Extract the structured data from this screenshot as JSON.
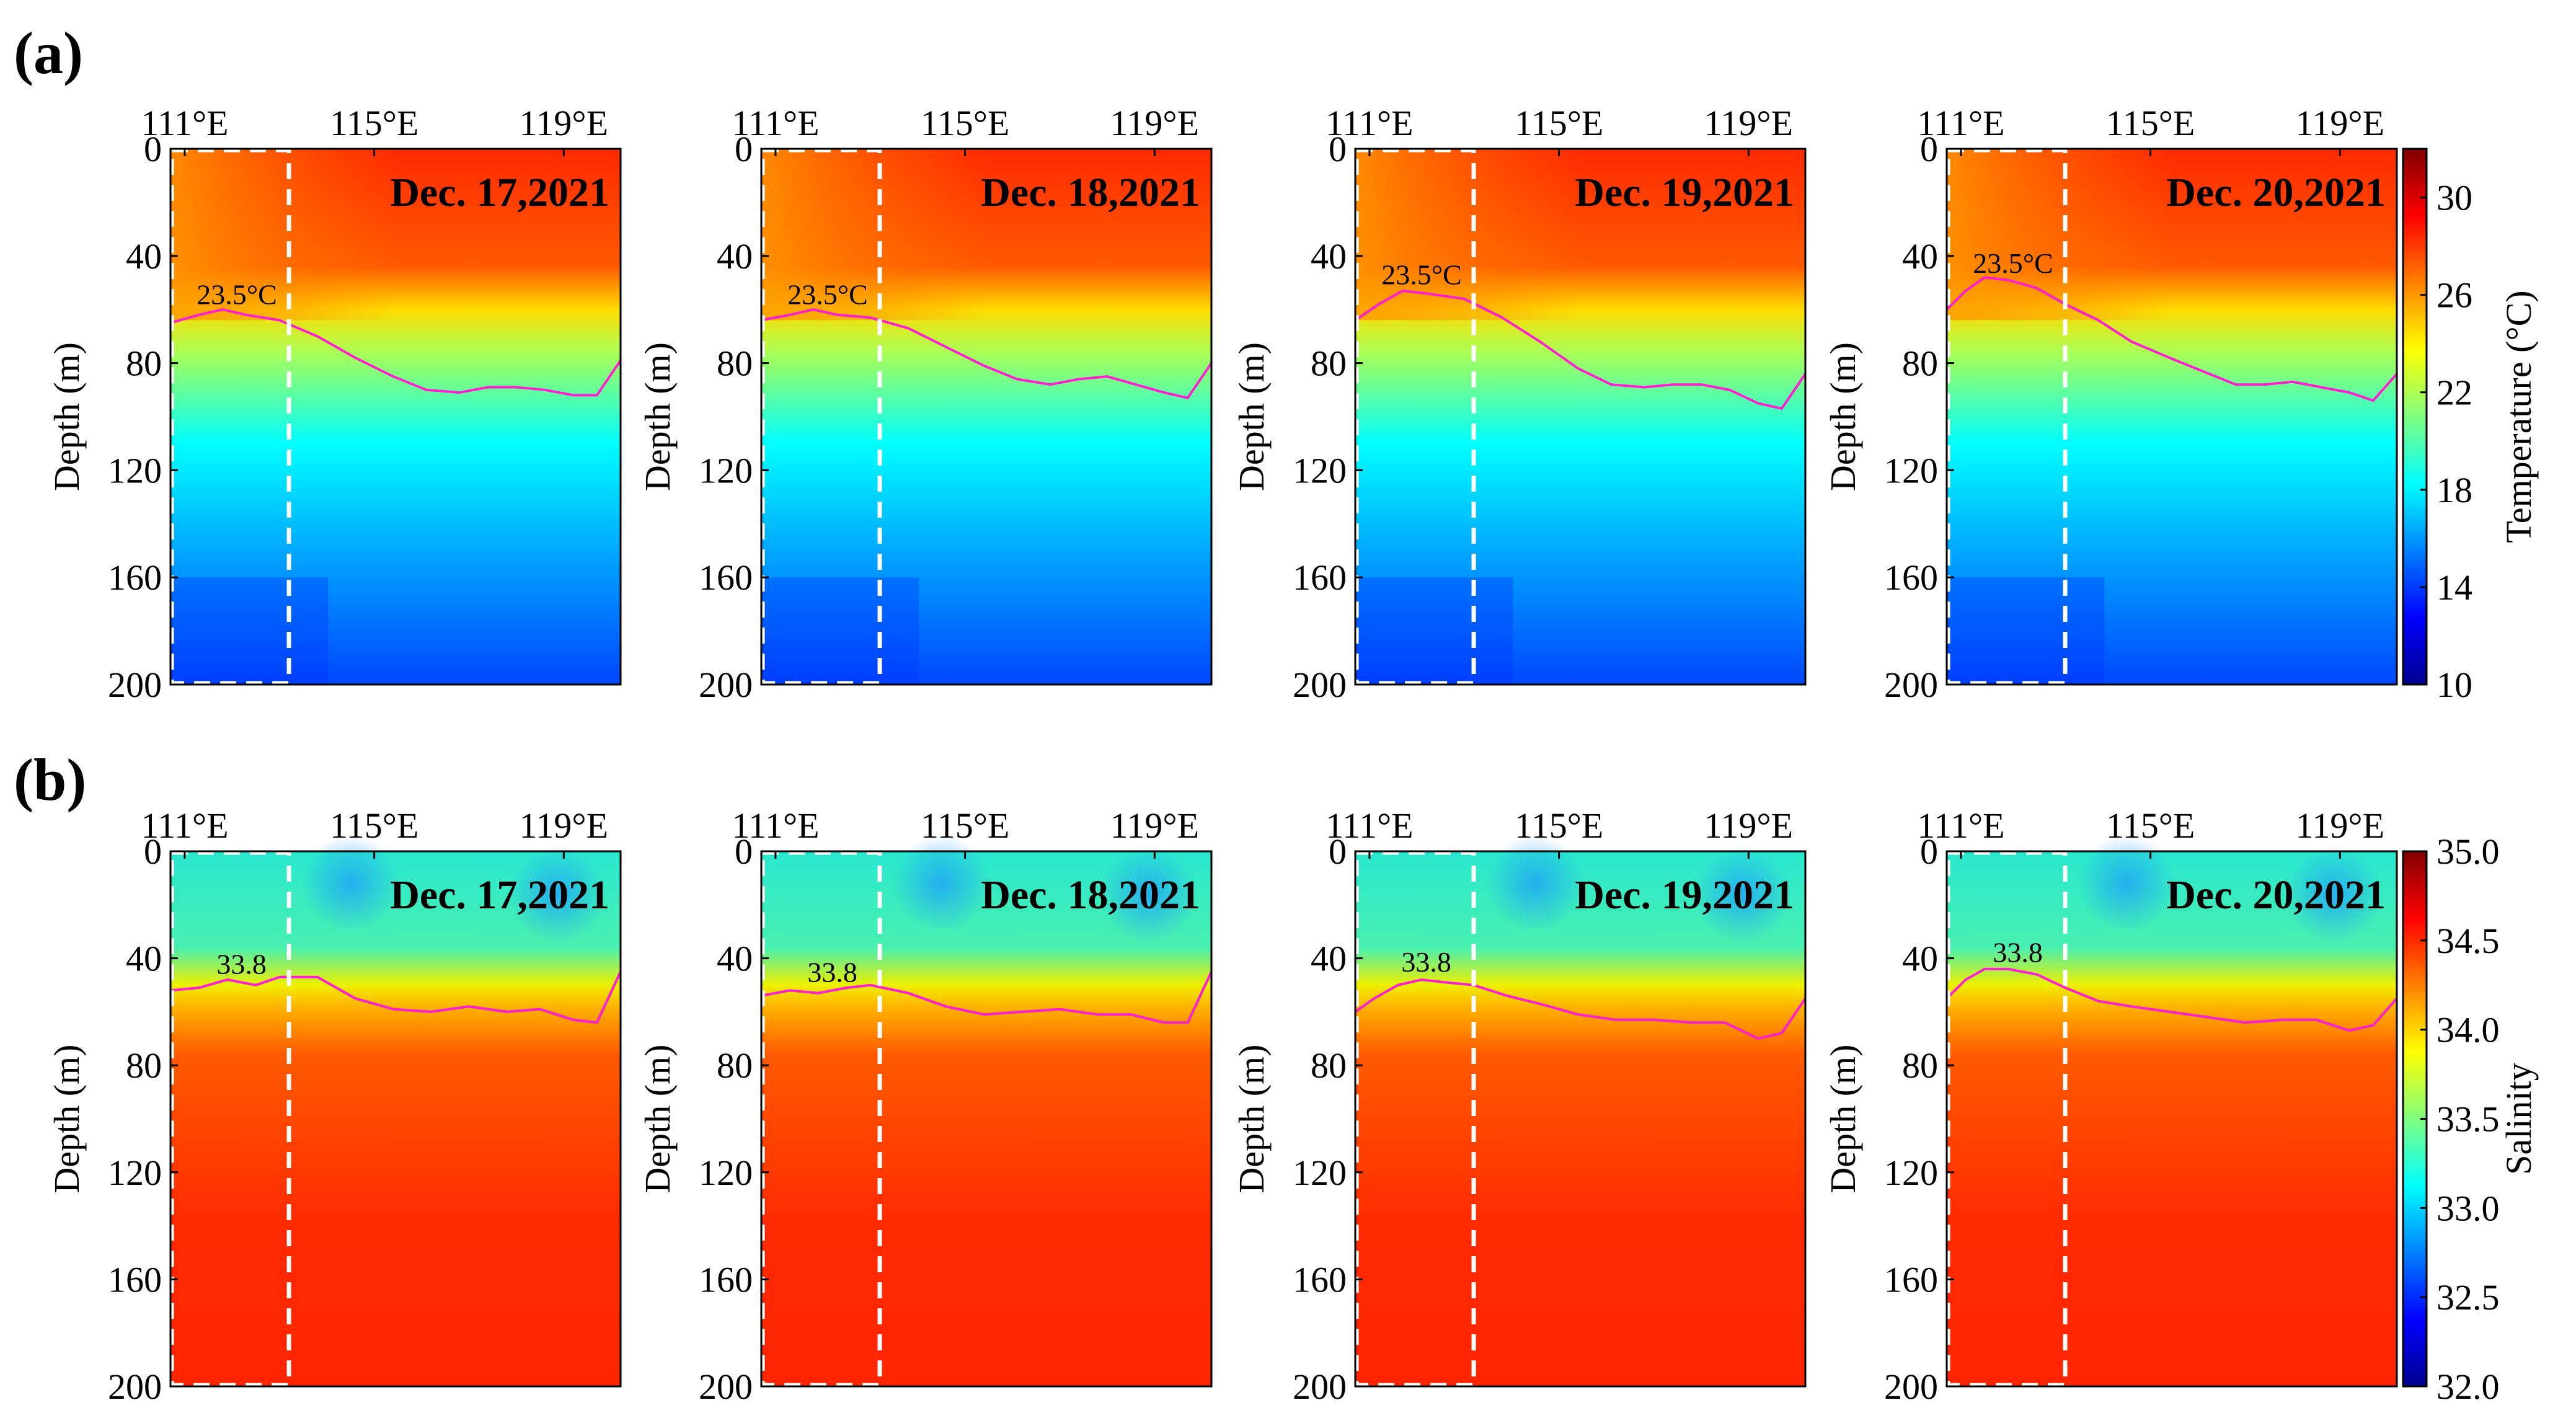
{
  "figure": {
    "row_labels": [
      "(a)",
      "(b)"
    ],
    "colormap_stops": [
      "#00008f",
      "#0000ff",
      "#0080ff",
      "#00ffff",
      "#80ff80",
      "#ffff00",
      "#ff8000",
      "#ff0000",
      "#800000"
    ]
  },
  "chart_data": [
    {
      "type": "heatmap",
      "panel": "a",
      "variable": "Temperature",
      "unit": "°C",
      "colorbar": {
        "label": "Temperature (°C)",
        "ticks": [
          "10",
          "14",
          "18",
          "22",
          "26",
          "30"
        ],
        "range": [
          10,
          32
        ]
      },
      "x_ticks": [
        "111°E",
        "115°E",
        "119°E"
      ],
      "x_tick_values": [
        111,
        115,
        119
      ],
      "x_range": [
        110.7,
        120.2
      ],
      "ylabel": "Depth (m)",
      "y_ticks": [
        "0",
        "40",
        "80",
        "120",
        "160",
        "200"
      ],
      "y_range": [
        0,
        200
      ],
      "highlight_box_lon": [
        110.7,
        113.2
      ],
      "contour_label": "23.5°C",
      "contour_label_lon": 112.1,
      "dates": [
        "Dec. 17,2021",
        "Dec. 18,2021",
        "Dec. 19,2021",
        "Dec. 20,2021"
      ],
      "contours": [
        {
          "lon": [
            110.7,
            111.3,
            111.8,
            112.3,
            113.0,
            113.8,
            114.6,
            115.4,
            116.1,
            116.8,
            117.4,
            118.0,
            118.6,
            119.2,
            119.7,
            120.2
          ],
          "depth": [
            65,
            62,
            60,
            62,
            64,
            70,
            78,
            85,
            90,
            91,
            89,
            89,
            90,
            92,
            92,
            79
          ]
        },
        {
          "lon": [
            110.7,
            111.3,
            111.8,
            112.3,
            113.0,
            113.8,
            114.6,
            115.4,
            116.1,
            116.8,
            117.4,
            118.0,
            118.6,
            119.2,
            119.7,
            120.2
          ],
          "depth": [
            64,
            62,
            60,
            62,
            63,
            67,
            74,
            81,
            86,
            88,
            86,
            85,
            88,
            91,
            93,
            80
          ]
        },
        {
          "lon": [
            110.7,
            111.2,
            111.7,
            112.2,
            113.0,
            113.8,
            114.6,
            115.4,
            116.1,
            116.8,
            117.4,
            118.0,
            118.6,
            119.2,
            119.7,
            120.2
          ],
          "depth": [
            64,
            58,
            53,
            54,
            56,
            63,
            72,
            82,
            88,
            89,
            88,
            88,
            90,
            95,
            97,
            84
          ]
        },
        {
          "lon": [
            110.7,
            111.1,
            111.5,
            112.0,
            112.6,
            113.2,
            113.9,
            114.6,
            115.4,
            116.1,
            116.8,
            117.4,
            118.0,
            118.6,
            119.2,
            119.7,
            120.2
          ],
          "depth": [
            60,
            53,
            48,
            49,
            52,
            58,
            64,
            72,
            78,
            83,
            88,
            88,
            87,
            89,
            91,
            94,
            84
          ]
        }
      ]
    },
    {
      "type": "heatmap",
      "panel": "b",
      "variable": "Salinity",
      "unit": "",
      "colorbar": {
        "label": "Salinity",
        "ticks": [
          "32.0",
          "32.5",
          "33.0",
          "33.5",
          "34.0",
          "34.5",
          "35.0"
        ],
        "range": [
          32.0,
          35.0
        ]
      },
      "x_ticks": [
        "111°E",
        "115°E",
        "119°E"
      ],
      "x_tick_values": [
        111,
        115,
        119
      ],
      "x_range": [
        110.7,
        120.2
      ],
      "ylabel": "Depth (m)",
      "y_ticks": [
        "0",
        "40",
        "80",
        "120",
        "160",
        "200"
      ],
      "y_range": [
        0,
        200
      ],
      "highlight_box_lon": [
        110.7,
        113.2
      ],
      "contour_label": "33.8",
      "contour_label_lon": 112.2,
      "dates": [
        "Dec. 17,2021",
        "Dec. 18,2021",
        "Dec. 19,2021",
        "Dec. 20,2021"
      ],
      "contours": [
        {
          "lon": [
            110.7,
            111.3,
            111.9,
            112.5,
            113.0,
            113.8,
            114.6,
            115.4,
            116.2,
            117.0,
            117.8,
            118.5,
            119.2,
            119.7,
            120.2
          ],
          "depth": [
            52,
            51,
            48,
            50,
            47,
            47,
            55,
            59,
            60,
            58,
            60,
            59,
            63,
            64,
            45
          ]
        },
        {
          "lon": [
            110.7,
            111.3,
            111.9,
            112.5,
            113.0,
            113.8,
            114.6,
            115.4,
            116.2,
            117.0,
            117.8,
            118.5,
            119.2,
            119.7,
            120.2
          ],
          "depth": [
            54,
            52,
            53,
            51,
            50,
            53,
            58,
            61,
            60,
            59,
            61,
            61,
            64,
            64,
            45
          ]
        },
        {
          "lon": [
            110.7,
            111.1,
            111.6,
            112.1,
            112.6,
            113.2,
            113.9,
            114.6,
            115.4,
            116.2,
            117.0,
            117.8,
            118.5,
            119.2,
            119.7,
            120.2
          ],
          "depth": [
            60,
            55,
            50,
            48,
            49,
            50,
            54,
            57,
            61,
            63,
            63,
            64,
            64,
            70,
            68,
            55
          ]
        },
        {
          "lon": [
            110.7,
            111.1,
            111.5,
            112.0,
            112.6,
            113.2,
            113.9,
            114.6,
            115.4,
            116.2,
            117.0,
            117.8,
            118.5,
            119.2,
            119.7,
            120.2
          ],
          "depth": [
            55,
            48,
            44,
            44,
            46,
            51,
            56,
            58,
            60,
            62,
            64,
            63,
            63,
            67,
            65,
            55
          ]
        }
      ]
    }
  ]
}
